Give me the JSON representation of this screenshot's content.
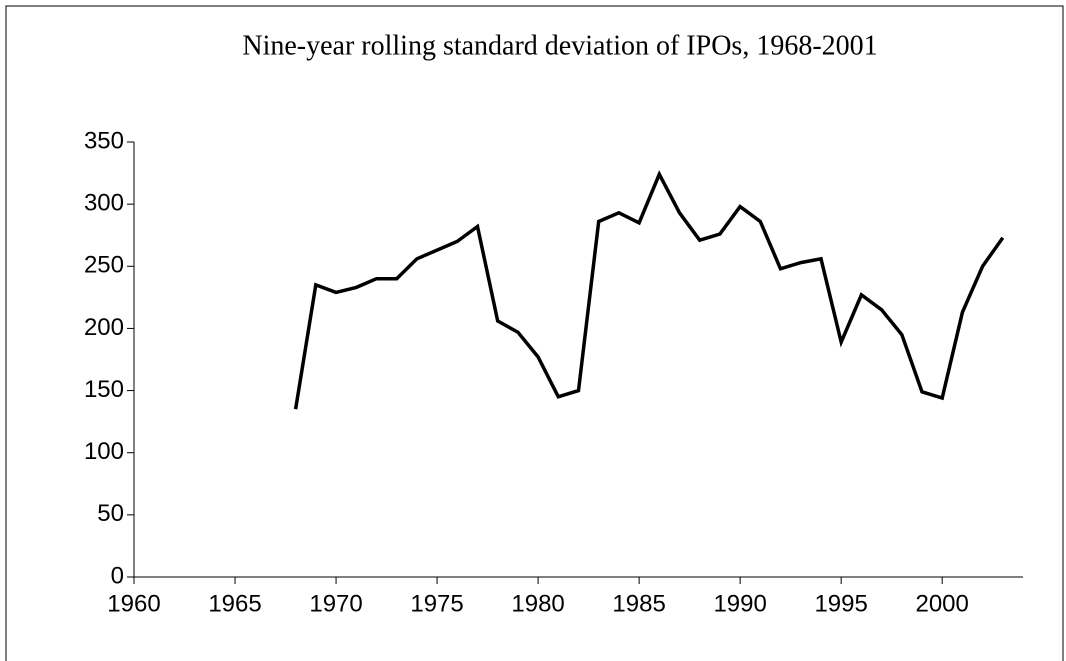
{
  "chart_data": {
    "type": "line",
    "title": "Nine-year rolling standard deviation of IPOs, 1968-2001",
    "x": [
      1968,
      1969,
      1970,
      1971,
      1972,
      1973,
      1974,
      1975,
      1976,
      1977,
      1978,
      1979,
      1980,
      1981,
      1982,
      1983,
      1984,
      1985,
      1986,
      1987,
      1988,
      1989,
      1990,
      1991,
      1992,
      1993,
      1994,
      1995,
      1996,
      1997,
      1998,
      1999,
      2000,
      2001,
      2002,
      2003
    ],
    "series": [
      {
        "color": "#000000",
        "values": [
          135,
          235,
          229,
          233,
          240,
          240,
          256,
          263,
          270,
          282,
          206,
          197,
          177,
          145,
          150,
          286,
          293,
          285,
          324,
          293,
          271,
          276,
          298,
          286,
          248,
          253,
          256,
          189,
          227,
          215,
          195,
          149,
          144,
          213,
          250,
          273
        ]
      }
    ],
    "xlim": [
      1960,
      2004
    ],
    "xticks": [
      1960,
      1965,
      1970,
      1975,
      1980,
      1985,
      1990,
      1995,
      2000
    ],
    "ylim": [
      0,
      350
    ],
    "yticks": [
      0,
      50,
      100,
      150,
      200,
      250,
      300,
      350
    ],
    "grid": false
  }
}
